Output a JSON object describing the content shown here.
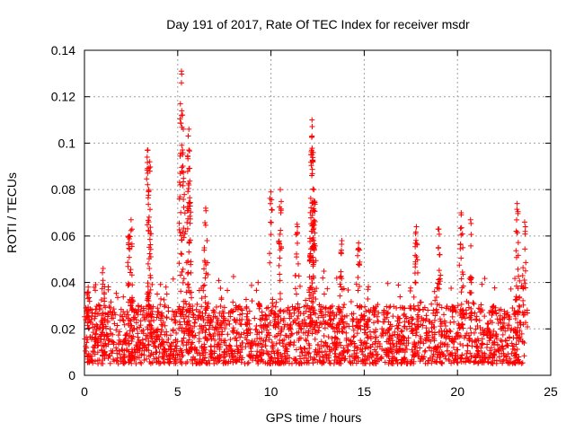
{
  "chart_data": {
    "type": "scatter",
    "title": "Day 191 of 2017, Rate Of TEC Index for receiver msdr",
    "xlabel": "GPS time / hours",
    "ylabel": "ROTI / TECUs",
    "xlim": [
      0,
      25
    ],
    "ylim": [
      0,
      0.14
    ],
    "xticks": [
      0,
      5,
      10,
      15,
      20,
      25
    ],
    "yticks": [
      0,
      0.02,
      0.04,
      0.06,
      0.08,
      0.1,
      0.12,
      0.14
    ],
    "xtick_labels": [
      "0",
      "5",
      "10",
      "15",
      "20",
      "25"
    ],
    "ytick_labels": [
      "0",
      "0.02",
      "0.04",
      "0.06",
      "0.08",
      "0.1",
      "0.12",
      "0.14"
    ],
    "grid": true,
    "marker": "+",
    "color": "#ff0000",
    "description": "Dense red '+' scatter of ROTI values for every satellite pass between 0 and ~23.6 h; bulk of values 0.005-0.04 TECU/s with isolated spikes.",
    "series": [
      {
        "name": "ROTI",
        "bands": [
          {
            "x": [
              0.0,
              23.6
            ],
            "y": [
              0.005,
              0.03
            ],
            "density": "dense"
          }
        ],
        "peaks": [
          {
            "x": 0.2,
            "y": 0.038
          },
          {
            "x": 1.0,
            "y": 0.046
          },
          {
            "x": 2.4,
            "y": 0.06
          },
          {
            "x": 2.5,
            "y": 0.067
          },
          {
            "x": 3.4,
            "y": 0.097
          },
          {
            "x": 3.5,
            "y": 0.092
          },
          {
            "x": 3.45,
            "y": 0.08
          },
          {
            "x": 5.2,
            "y": 0.131
          },
          {
            "x": 5.2,
            "y": 0.126
          },
          {
            "x": 5.3,
            "y": 0.106
          },
          {
            "x": 5.6,
            "y": 0.106
          },
          {
            "x": 5.6,
            "y": 0.097
          },
          {
            "x": 5.6,
            "y": 0.082
          },
          {
            "x": 6.5,
            "y": 0.072
          },
          {
            "x": 10.0,
            "y": 0.079
          },
          {
            "x": 10.5,
            "y": 0.08
          },
          {
            "x": 11.4,
            "y": 0.065
          },
          {
            "x": 12.2,
            "y": 0.11
          },
          {
            "x": 12.2,
            "y": 0.103
          },
          {
            "x": 12.2,
            "y": 0.095
          },
          {
            "x": 12.3,
            "y": 0.08
          },
          {
            "x": 12.3,
            "y": 0.075
          },
          {
            "x": 13.8,
            "y": 0.058
          },
          {
            "x": 14.7,
            "y": 0.057
          },
          {
            "x": 17.8,
            "y": 0.064
          },
          {
            "x": 19.0,
            "y": 0.063
          },
          {
            "x": 20.2,
            "y": 0.07
          },
          {
            "x": 20.7,
            "y": 0.067
          },
          {
            "x": 23.2,
            "y": 0.074
          },
          {
            "x": 23.6,
            "y": 0.066
          }
        ]
      }
    ]
  }
}
